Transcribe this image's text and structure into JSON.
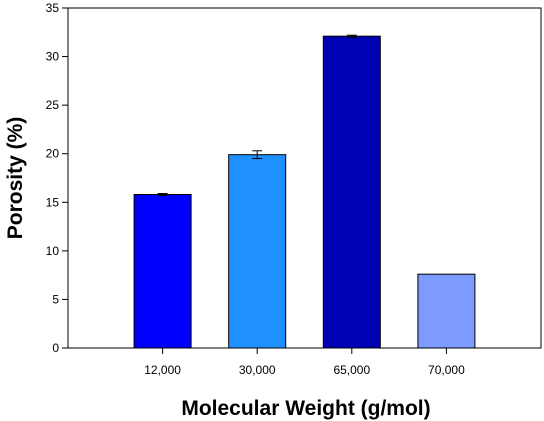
{
  "chart_data": {
    "type": "bar",
    "title": "",
    "xlabel": "Molecular Weight (g/mol)",
    "ylabel": "Porosity (%)",
    "ylim": [
      0,
      35
    ],
    "yticks": [
      0,
      5,
      10,
      15,
      20,
      25,
      30,
      35
    ],
    "grid": false,
    "legend": "none",
    "categories": [
      "12,000",
      "30,000",
      "65,000",
      "70,000"
    ],
    "series": [
      {
        "values": [
          15.8,
          19.9,
          32.1,
          7.6
        ],
        "errors": [
          0.1,
          0.4,
          0.1,
          0
        ],
        "colors": [
          "#0000ff",
          "#1e90ff",
          "#0000b4",
          "#7d9aff"
        ]
      }
    ]
  }
}
